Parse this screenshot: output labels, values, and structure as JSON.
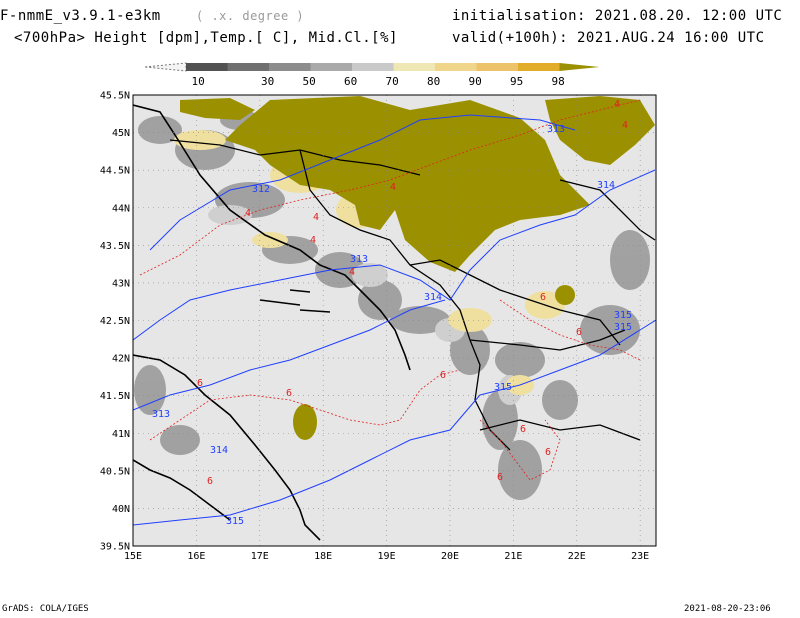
{
  "header": {
    "model": "F-nmmE_v3.9.1-e3km",
    "resolution": "( .x. degree )",
    "params": "<700hPa> Height [dpm],Temp.[ C], Mid.Cl.[%]",
    "init": "initialisation: 2021.08.20. 12:00 UTC",
    "valid": "valid(+100h): 2021.AUG.24 16:00 UTC"
  },
  "colorbar": {
    "labels": [
      "10",
      "30",
      "50",
      "60",
      "70",
      "80",
      "90",
      "95",
      "98"
    ],
    "colors": [
      "#525252",
      "#6f6f6f",
      "#8c8c8c",
      "#a9a9a9",
      "#c9c9c9",
      "#efe7b4",
      "#f0d68a",
      "#ecc36a",
      "#e2ad2a",
      "#9b9100"
    ]
  },
  "axes": {
    "lat_labels": [
      "45.5N",
      "45N",
      "44.5N",
      "44N",
      "43.5N",
      "43N",
      "42.5N",
      "42N",
      "41.5N",
      "41N",
      "40.5N",
      "40N",
      "39.5N"
    ],
    "lon_labels": [
      "15E",
      "16E",
      "17E",
      "18E",
      "19E",
      "20E",
      "21E",
      "22E",
      "23E"
    ]
  },
  "contours": {
    "height_labels": [
      "312",
      "313",
      "314",
      "313",
      "314",
      "315",
      "315",
      "315",
      "313",
      "314",
      "315"
    ],
    "temp_labels": [
      "4",
      "4",
      "4",
      "4",
      "4",
      "4",
      "4",
      "6",
      "6",
      "6",
      "6",
      "6",
      "6",
      "6",
      "6",
      "6"
    ]
  },
  "footer": {
    "left": "GrADS: COLA/IGES",
    "right": "2021-08-20-23:06"
  }
}
